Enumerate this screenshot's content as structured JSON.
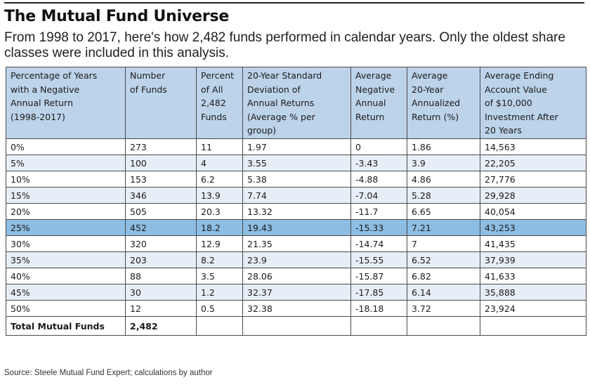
{
  "title": "The Mutual Fund Universe",
  "subtitle": "From 1998 to 2017, here's how 2,482 funds performed in calendar years. Only the oldest share classes were included in this analysis.",
  "colors": {
    "header_bg": "#bcd3ea",
    "alt_row_bg": "#e7eef8",
    "highlight_row_bg": "#8dbde3",
    "border": "#4a4a4a"
  },
  "table": {
    "headers": [
      [
        "Percentage of Years",
        "with a Negative",
        "Annual Return",
        "(1998-2017)"
      ],
      [
        "Number",
        "of Funds"
      ],
      [
        "Percent",
        "of All",
        "2,482",
        "Funds"
      ],
      [
        "20-Year Standard",
        "Deviation of",
        "Annual Returns",
        "(Average % per",
        "group)"
      ],
      [
        "Average",
        "Negative",
        "Annual",
        "Return"
      ],
      [
        "Average",
        "20-Year",
        "Annualized",
        "Return (%)"
      ],
      [
        "Average Ending",
        "Account Value",
        "of $10,000",
        "Investment After",
        "20 Years"
      ]
    ],
    "rows": [
      [
        "0%",
        "273",
        "11",
        "1.97",
        "0",
        "1.86",
        "14,563"
      ],
      [
        "5%",
        "100",
        "4",
        "3.55",
        "-3.43",
        "3.9",
        "22,205"
      ],
      [
        "10%",
        "153",
        "6.2",
        "5.38",
        "-4.88",
        "4.86",
        "27,776"
      ],
      [
        "15%",
        "346",
        "13.9",
        "7.74",
        "-7.04",
        "5.28",
        "29,928"
      ],
      [
        "20%",
        "505",
        "20.3",
        "13.32",
        "-11.7",
        "6.65",
        "40,054"
      ],
      [
        "25%",
        "452",
        "18.2",
        "19.43",
        "-15.33",
        "7.21",
        "43,253"
      ],
      [
        "30%",
        "320",
        "12.9",
        "21.35",
        "-14.74",
        "7",
        "41,435"
      ],
      [
        "35%",
        "203",
        "8.2",
        "23.9",
        "-15.55",
        "6.52",
        "37,939"
      ],
      [
        "40%",
        "88",
        "3.5",
        "28.06",
        "-15.87",
        "6.82",
        "41,633"
      ],
      [
        "45%",
        "30",
        "1.2",
        "32.37",
        "-17.85",
        "6.14",
        "35,888"
      ],
      [
        "50%",
        "12",
        "0.5",
        "32.38",
        "-18.18",
        "3.72",
        "23,924"
      ]
    ],
    "total": {
      "label": "Total Mutual Funds",
      "count": "2,482"
    }
  },
  "source": "Source: Steele Mutual Fund Expert; calculations by author"
}
